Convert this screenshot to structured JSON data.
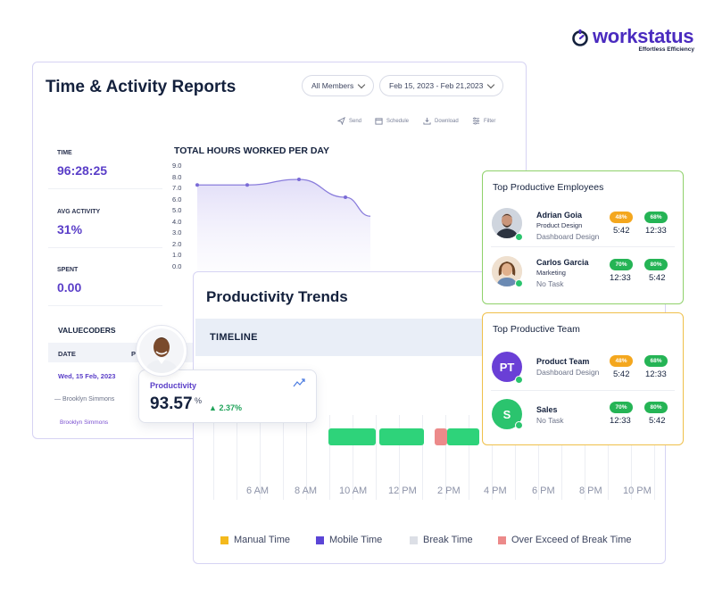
{
  "brand": {
    "name": "workstatus",
    "tagline": "Effortless Efficiency",
    "colors": {
      "primary": "#4a2bbf",
      "accent": "#5a3ec8"
    }
  },
  "report": {
    "title": "Time & Activity Reports",
    "members_filter": "All Members",
    "date_range": "Feb 15, 2023 - Feb 21,2023",
    "toolbar": {
      "send": "Send",
      "schedule": "Schedule",
      "download": "Download",
      "filter": "Filter"
    },
    "stats": [
      {
        "label": "TIME",
        "value": "96:28:25"
      },
      {
        "label": "AVG ACTIVITY",
        "value": "31%"
      },
      {
        "label": "SPENT",
        "value": "0.00"
      }
    ],
    "valuecoders": {
      "title": "VALUECODERS",
      "col_date": "DATE",
      "col_p": "P",
      "row_date": "Wed, 15 Feb, 2023",
      "member_1": "— Brooklyn Simmons",
      "member_2": "Brooklyn Simmons"
    }
  },
  "chart_data": {
    "type": "area",
    "title": "TOTAL HOURS WORKED PER DAY",
    "y_ticks": [
      "9.0",
      "8.0",
      "7.0",
      "6.0",
      "5.0",
      "4.0",
      "3.0",
      "2.0",
      "1.0",
      "0.0"
    ],
    "ylim": [
      0,
      9
    ],
    "x": [
      1,
      2,
      3,
      4,
      5
    ],
    "values": [
      7.3,
      7.3,
      7.8,
      6.2,
      4.5
    ]
  },
  "productivity": {
    "label": "Productivity",
    "value": "93.57",
    "unit": "%",
    "delta": "2.37%"
  },
  "trends": {
    "title": "Productivity Trends",
    "timeline_label": "TIMELINE",
    "hours": [
      "6 AM",
      "8 AM",
      "10 AM",
      "12 PM",
      "2 PM",
      "4 PM",
      "6 PM",
      "8 PM",
      "10 PM"
    ],
    "legend": [
      {
        "label": "Manual Time",
        "color": "#f4b91d"
      },
      {
        "label": "Mobile Time",
        "color": "#5b45d6"
      },
      {
        "label": "Break Time",
        "color": "#dcdfe6"
      },
      {
        "label": "Over Exceed of Break Time",
        "color": "#ec8a8a"
      }
    ]
  },
  "top_employees": {
    "title": "Top Productive Employees",
    "items": [
      {
        "name": "Adrian Goia",
        "role": "Product Design",
        "task": "Dashboard Design",
        "badge1": "48%",
        "time1": "5:42",
        "badge2": "68%",
        "time2": "12:33"
      },
      {
        "name": "Carlos Garcia",
        "role": "Marketing",
        "task": "No Task",
        "badge1": "70%",
        "time1": "12:33",
        "badge2": "80%",
        "time2": "5:42"
      }
    ]
  },
  "top_team": {
    "title": "Top Productive Team",
    "items": [
      {
        "initials": "PT",
        "name": "Product Team",
        "task": "Dashboard Design",
        "badge1": "48%",
        "time1": "5:42",
        "badge2": "68%",
        "time2": "12:33"
      },
      {
        "initials": "S",
        "name": "Sales",
        "task": "No Task",
        "badge1": "70%",
        "time1": "12:33",
        "badge2": "80%",
        "time2": "5:42"
      }
    ]
  }
}
